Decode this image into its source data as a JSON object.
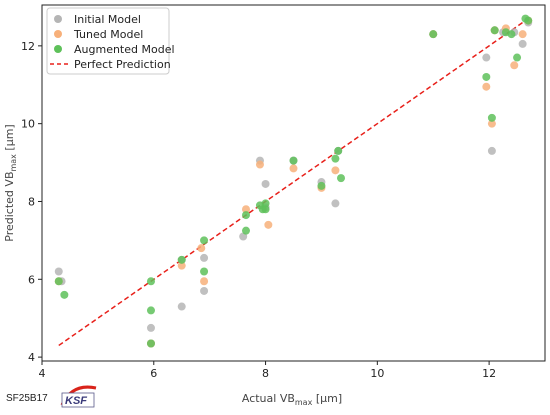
{
  "chart_data": {
    "type": "scatter",
    "xlabel": {
      "main": "Actual VB",
      "sub": "max",
      "unit": " [μm]"
    },
    "ylabel": {
      "main": "Predicted  VB",
      "sub": "max",
      "unit": " [μm]"
    },
    "xlim": [
      4.0,
      13.0
    ],
    "ylim": [
      3.9,
      13.05
    ],
    "xticks": [
      "4",
      "6",
      "8",
      "10",
      "12"
    ],
    "xtick_values": [
      4,
      6,
      8,
      10,
      12
    ],
    "yticks": [
      "4",
      "6",
      "8",
      "10",
      "12"
    ],
    "ytick_values": [
      4,
      6,
      8,
      10,
      12
    ],
    "legend_position": "top-left",
    "grid": false,
    "series": [
      {
        "name": "Initial Model",
        "color": "#b5b5b5",
        "points": [
          [
            4.3,
            6.2
          ],
          [
            4.35,
            5.95
          ],
          [
            5.95,
            4.75
          ],
          [
            5.95,
            4.35
          ],
          [
            6.5,
            5.3
          ],
          [
            6.5,
            6.5
          ],
          [
            6.9,
            5.7
          ],
          [
            6.9,
            6.55
          ],
          [
            7.6,
            7.1
          ],
          [
            7.9,
            9.05
          ],
          [
            8.0,
            8.45
          ],
          [
            8.0,
            7.85
          ],
          [
            8.5,
            9.05
          ],
          [
            9.0,
            8.5
          ],
          [
            9.25,
            7.95
          ],
          [
            9.3,
            9.3
          ],
          [
            11.0,
            12.3
          ],
          [
            11.95,
            11.7
          ],
          [
            12.05,
            9.3
          ],
          [
            12.1,
            12.4
          ],
          [
            12.25,
            12.35
          ],
          [
            12.45,
            12.35
          ],
          [
            12.6,
            12.05
          ],
          [
            12.7,
            12.6
          ]
        ]
      },
      {
        "name": "Tuned Model",
        "color": "#f7b07a",
        "points": [
          [
            4.3,
            5.95
          ],
          [
            5.95,
            4.35
          ],
          [
            6.5,
            6.35
          ],
          [
            6.85,
            6.8
          ],
          [
            6.9,
            5.95
          ],
          [
            7.65,
            7.8
          ],
          [
            7.9,
            8.95
          ],
          [
            8.05,
            7.4
          ],
          [
            8.5,
            8.85
          ],
          [
            9.0,
            8.35
          ],
          [
            9.25,
            8.8
          ],
          [
            11.0,
            12.3
          ],
          [
            11.95,
            10.95
          ],
          [
            12.05,
            10.0
          ],
          [
            12.1,
            12.4
          ],
          [
            12.3,
            12.45
          ],
          [
            12.45,
            11.5
          ],
          [
            12.6,
            12.3
          ],
          [
            12.7,
            12.65
          ]
        ]
      },
      {
        "name": "Augmented Model",
        "color": "#5ec15a",
        "points": [
          [
            4.3,
            5.95
          ],
          [
            4.4,
            5.6
          ],
          [
            5.95,
            5.95
          ],
          [
            5.95,
            5.2
          ],
          [
            5.95,
            4.35
          ],
          [
            6.5,
            6.5
          ],
          [
            6.9,
            7.0
          ],
          [
            6.9,
            6.2
          ],
          [
            7.65,
            7.65
          ],
          [
            7.65,
            7.25
          ],
          [
            7.9,
            7.9
          ],
          [
            7.95,
            7.8
          ],
          [
            8.0,
            7.8
          ],
          [
            8.0,
            7.95
          ],
          [
            8.5,
            9.05
          ],
          [
            9.0,
            8.4
          ],
          [
            9.25,
            9.1
          ],
          [
            9.3,
            9.3
          ],
          [
            9.35,
            8.6
          ],
          [
            11.0,
            12.3
          ],
          [
            11.95,
            11.2
          ],
          [
            12.05,
            10.15
          ],
          [
            12.1,
            12.4
          ],
          [
            12.3,
            12.35
          ],
          [
            12.4,
            12.3
          ],
          [
            12.5,
            11.7
          ],
          [
            12.65,
            12.7
          ],
          [
            12.7,
            12.65
          ]
        ]
      }
    ],
    "reference_line": {
      "name": "Perfect Prediction",
      "color": "#e8201a",
      "from": [
        4.3,
        4.3
      ],
      "to": [
        12.7,
        12.7
      ]
    }
  },
  "footer": {
    "code": "SF25B17",
    "logo_text": "KSF"
  }
}
